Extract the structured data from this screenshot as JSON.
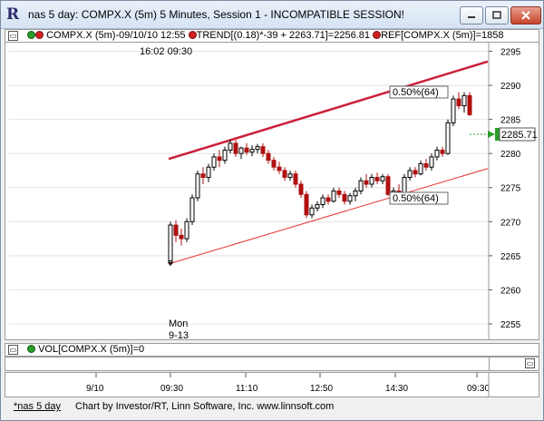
{
  "window": {
    "title": "nas 5 day: COMPX.X (5m) 5 Minutes, Session 1 - INCOMPATIBLE SESSION!",
    "controls": [
      "minimize",
      "maximize",
      "close"
    ]
  },
  "price_pane": {
    "header": "COMPX.X (5m)-09/10/10 12:55",
    "trend_label": "TREND[(0.18)*-39 + 2263.71]=2256.81",
    "ref_label": "REF[COMPX.X (5m)]=1858",
    "time_marker": "16:02  09:30",
    "day_label_line1": "Mon",
    "day_label_line2": "9-13",
    "upper_channel_label": "0.50%(64)",
    "lower_channel_label": "0.50%(64)",
    "last_price": "2285.71",
    "channel_color": "#cc1e3a",
    "up_color": "#000000"
  },
  "volume_pane": {
    "header": "VOL[COMPX.X (5m)]=0"
  },
  "x_axis": {
    "ticks": [
      "9/10",
      "09:30",
      "11:10",
      "12:50",
      "14:30",
      "09:30"
    ]
  },
  "footer": {
    "tab_label": "*nas 5 day",
    "credit": "Chart by Investor/RT, Linn Software, Inc. www.linnsoft.com"
  },
  "chart_data": {
    "type": "candlestick",
    "title": "COMPX.X (5m)-09/10/10 12:55",
    "ylim": [
      2253,
      2296
    ],
    "yticks": [
      2255,
      2260,
      2265,
      2270,
      2275,
      2280,
      2285,
      2290,
      2295
    ],
    "candles": [
      {
        "o": 2264.0,
        "h": 2270.0,
        "l": 2263.5,
        "c": 2269.5
      },
      {
        "o": 2269.5,
        "h": 2270.2,
        "l": 2267.0,
        "c": 2268.0
      },
      {
        "o": 2268.0,
        "h": 2269.0,
        "l": 2266.5,
        "c": 2267.5
      },
      {
        "o": 2267.5,
        "h": 2270.5,
        "l": 2267.0,
        "c": 2270.0
      },
      {
        "o": 2270.0,
        "h": 2274.0,
        "l": 2269.5,
        "c": 2273.5
      },
      {
        "o": 2273.5,
        "h": 2277.5,
        "l": 2273.0,
        "c": 2277.0
      },
      {
        "o": 2277.0,
        "h": 2278.0,
        "l": 2275.5,
        "c": 2276.5
      },
      {
        "o": 2276.5,
        "h": 2278.5,
        "l": 2275.8,
        "c": 2278.0
      },
      {
        "o": 2278.0,
        "h": 2280.0,
        "l": 2277.5,
        "c": 2279.5
      },
      {
        "o": 2279.5,
        "h": 2280.5,
        "l": 2278.0,
        "c": 2279.0
      },
      {
        "o": 2279.0,
        "h": 2281.0,
        "l": 2278.5,
        "c": 2280.5
      },
      {
        "o": 2280.5,
        "h": 2282.0,
        "l": 2280.0,
        "c": 2281.5
      },
      {
        "o": 2281.5,
        "h": 2282.0,
        "l": 2279.5,
        "c": 2280.0
      },
      {
        "o": 2280.0,
        "h": 2281.0,
        "l": 2279.2,
        "c": 2280.8
      },
      {
        "o": 2280.8,
        "h": 2281.5,
        "l": 2279.8,
        "c": 2280.2
      },
      {
        "o": 2280.2,
        "h": 2281.2,
        "l": 2279.6,
        "c": 2280.6
      },
      {
        "o": 2280.6,
        "h": 2281.4,
        "l": 2280.0,
        "c": 2281.0
      },
      {
        "o": 2281.0,
        "h": 2281.5,
        "l": 2279.5,
        "c": 2280.0
      },
      {
        "o": 2280.0,
        "h": 2280.5,
        "l": 2278.5,
        "c": 2279.0
      },
      {
        "o": 2279.0,
        "h": 2279.5,
        "l": 2277.5,
        "c": 2278.0
      },
      {
        "o": 2278.0,
        "h": 2278.8,
        "l": 2277.0,
        "c": 2277.5
      },
      {
        "o": 2277.5,
        "h": 2278.0,
        "l": 2276.0,
        "c": 2276.5
      },
      {
        "o": 2276.5,
        "h": 2277.5,
        "l": 2276.0,
        "c": 2277.0
      },
      {
        "o": 2277.0,
        "h": 2277.5,
        "l": 2275.0,
        "c": 2275.5
      },
      {
        "o": 2275.5,
        "h": 2276.0,
        "l": 2273.5,
        "c": 2274.0
      },
      {
        "o": 2274.0,
        "h": 2274.5,
        "l": 2270.5,
        "c": 2271.0
      },
      {
        "o": 2271.0,
        "h": 2272.5,
        "l": 2270.5,
        "c": 2272.0
      },
      {
        "o": 2272.0,
        "h": 2273.0,
        "l": 2271.5,
        "c": 2272.5
      },
      {
        "o": 2272.5,
        "h": 2274.0,
        "l": 2272.0,
        "c": 2273.5
      },
      {
        "o": 2273.5,
        "h": 2274.0,
        "l": 2272.5,
        "c": 2273.0
      },
      {
        "o": 2273.0,
        "h": 2275.0,
        "l": 2272.8,
        "c": 2274.5
      },
      {
        "o": 2274.5,
        "h": 2275.0,
        "l": 2273.5,
        "c": 2274.0
      },
      {
        "o": 2274.0,
        "h": 2274.5,
        "l": 2272.5,
        "c": 2273.0
      },
      {
        "o": 2273.0,
        "h": 2274.2,
        "l": 2272.5,
        "c": 2273.8
      },
      {
        "o": 2273.8,
        "h": 2275.0,
        "l": 2273.0,
        "c": 2274.5
      },
      {
        "o": 2274.5,
        "h": 2276.5,
        "l": 2274.0,
        "c": 2276.0
      },
      {
        "o": 2276.0,
        "h": 2277.0,
        "l": 2275.0,
        "c": 2275.5
      },
      {
        "o": 2275.5,
        "h": 2277.0,
        "l": 2275.0,
        "c": 2276.5
      },
      {
        "o": 2276.5,
        "h": 2277.2,
        "l": 2275.5,
        "c": 2276.0
      },
      {
        "o": 2276.0,
        "h": 2277.0,
        "l": 2275.5,
        "c": 2276.6
      },
      {
        "o": 2276.6,
        "h": 2277.0,
        "l": 2273.8,
        "c": 2274.0
      },
      {
        "o": 2274.0,
        "h": 2275.0,
        "l": 2273.0,
        "c": 2274.5
      },
      {
        "o": 2274.5,
        "h": 2275.5,
        "l": 2273.5,
        "c": 2274.0
      },
      {
        "o": 2274.0,
        "h": 2277.0,
        "l": 2273.8,
        "c": 2276.5
      },
      {
        "o": 2276.5,
        "h": 2278.0,
        "l": 2276.0,
        "c": 2277.5
      },
      {
        "o": 2277.5,
        "h": 2278.0,
        "l": 2276.5,
        "c": 2277.0
      },
      {
        "o": 2277.0,
        "h": 2279.0,
        "l": 2276.8,
        "c": 2278.5
      },
      {
        "o": 2278.5,
        "h": 2279.2,
        "l": 2277.5,
        "c": 2278.0
      },
      {
        "o": 2278.0,
        "h": 2280.0,
        "l": 2277.5,
        "c": 2279.5
      },
      {
        "o": 2279.5,
        "h": 2281.0,
        "l": 2279.0,
        "c": 2280.5
      },
      {
        "o": 2280.5,
        "h": 2281.0,
        "l": 2279.5,
        "c": 2280.0
      },
      {
        "o": 2280.0,
        "h": 2285.0,
        "l": 2279.8,
        "c": 2284.5
      },
      {
        "o": 2284.5,
        "h": 2288.5,
        "l": 2284.0,
        "c": 2288.0
      },
      {
        "o": 2288.0,
        "h": 2289.0,
        "l": 2286.5,
        "c": 2287.0
      },
      {
        "o": 2287.0,
        "h": 2289.0,
        "l": 2286.0,
        "c": 2288.5
      },
      {
        "o": 2288.5,
        "h": 2289.0,
        "l": 2285.5,
        "c": 2285.7
      }
    ],
    "upper_channel": {
      "start": 2279.2,
      "end": 2293.5
    },
    "lower_channel": {
      "start": 2263.8,
      "end": 2277.8
    }
  }
}
